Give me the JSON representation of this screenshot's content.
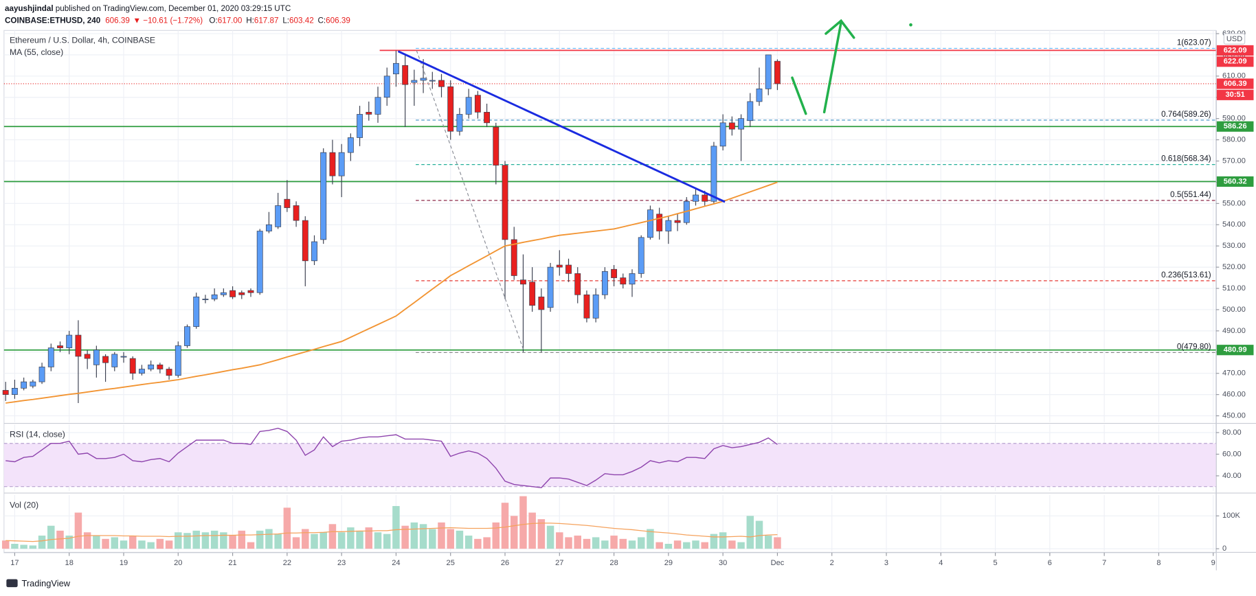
{
  "header": {
    "author": "aayushjindal",
    "published": " published on TradingView.com, December 01, 2020 03:29:15 UTC",
    "symbol": "COINBASE:ETHUSD, 240",
    "price": "606.39",
    "change": "▼ −10.61 (−1.72%)",
    "ohlc": [
      {
        "key": "O:",
        "text": "617.00"
      },
      {
        "key": "H:",
        "text": "617.87"
      },
      {
        "key": "L:",
        "text": "603.42"
      },
      {
        "key": "C:",
        "text": "606.39"
      }
    ]
  },
  "footer": {
    "brand": "TradingView"
  },
  "chart_data": [
    {
      "type": "candlestick",
      "title": "Ethereum / U.S. Dollar, 4h, COINBASE",
      "currency": "USD",
      "countdown": "30:51",
      "up_color": "#5b9cf6",
      "down_color": "#e8201f",
      "wick_color": "#3a3f4f",
      "open": [
        462,
        460,
        463,
        464,
        466,
        473,
        483,
        482,
        488,
        479,
        474,
        478,
        473,
        478,
        477,
        470,
        472,
        474,
        472,
        469,
        483,
        492,
        505,
        505,
        507,
        509,
        508,
        509,
        508,
        537,
        539,
        552,
        549,
        542,
        523,
        533,
        574,
        563,
        574,
        581,
        593,
        592,
        600,
        611,
        615,
        607,
        608,
        608,
        608,
        605,
        584,
        592,
        601,
        593,
        586,
        568,
        533,
        514,
        513,
        506,
        501,
        521,
        521,
        517,
        507,
        496,
        507,
        519,
        515,
        512,
        517,
        534,
        545,
        537,
        542,
        541,
        551,
        554,
        551,
        577,
        588,
        585,
        589,
        598,
        604,
        617
      ],
      "high": [
        466,
        467,
        468,
        467,
        475,
        484,
        485,
        490,
        495,
        481,
        483,
        479,
        480,
        480,
        478,
        474,
        476,
        475,
        473,
        485,
        493,
        508,
        507,
        510,
        510,
        511,
        509,
        510,
        538,
        546,
        555,
        561,
        551,
        544,
        535,
        576,
        580,
        578,
        583,
        596,
        598,
        605,
        614,
        622,
        620,
        613,
        618,
        612,
        611,
        608,
        595,
        604,
        603,
        597,
        588,
        570,
        539,
        526,
        520,
        510,
        522,
        528,
        524,
        520,
        509,
        510,
        520,
        521,
        517,
        519,
        535,
        549,
        548,
        544,
        545,
        553,
        557,
        556,
        579,
        592,
        591,
        592,
        602,
        614,
        620,
        617.87
      ],
      "low": [
        457,
        458,
        462,
        463,
        465,
        471,
        480,
        479,
        456,
        472,
        468,
        466,
        471,
        475,
        467,
        469,
        471,
        470,
        467,
        468,
        482,
        491,
        503,
        504,
        506,
        505,
        505,
        506,
        507,
        536,
        538,
        546,
        539,
        511,
        521,
        531,
        559,
        553,
        570,
        577,
        589,
        588,
        596,
        605,
        586,
        596,
        602,
        604,
        600,
        580,
        582,
        590,
        590,
        586,
        559,
        505,
        514,
        480,
        499,
        480,
        499,
        516,
        513,
        503,
        494,
        494,
        505,
        511,
        510,
        506,
        515,
        533,
        533,
        531,
        537,
        540,
        549,
        549,
        550,
        575,
        582,
        570,
        586,
        596,
        601,
        603.42
      ],
      "close": [
        460,
        463,
        466,
        466,
        473,
        482,
        482,
        488,
        478,
        477,
        481,
        475,
        479,
        478,
        470,
        472,
        474,
        472,
        469,
        483,
        492,
        506,
        505,
        507,
        508,
        506,
        507,
        508,
        537,
        540,
        549,
        548,
        542,
        523,
        532,
        574,
        563,
        574,
        581,
        592,
        592,
        600,
        610,
        616,
        606,
        608,
        609,
        608,
        605,
        584,
        592,
        600,
        593,
        588,
        568,
        533,
        516,
        512,
        502,
        500,
        520,
        520,
        517,
        507,
        496,
        507,
        518,
        515,
        512,
        517,
        534,
        547,
        537,
        542,
        541,
        551,
        554,
        551,
        577,
        588,
        585,
        590,
        598,
        604,
        620,
        606.39
      ],
      "ma": {
        "name": "MA (55, close)",
        "color": "#f29432",
        "values": [
          456,
          456.6,
          457.2,
          457.7,
          458.3,
          458.9,
          459.5,
          460.1,
          460.6,
          461.2,
          461.8,
          462.4,
          462.9,
          463.5,
          464.1,
          464.7,
          465.3,
          465.8,
          466.4,
          467,
          467.8,
          468.6,
          469.3,
          470.1,
          470.9,
          471.7,
          472.4,
          473.2,
          474,
          475.2,
          476.4,
          477.7,
          478.9,
          480.1,
          481.3,
          482.6,
          483.8,
          485,
          487,
          489,
          491,
          493,
          495,
          497,
          500.2,
          503.3,
          506.5,
          509.7,
          512.8,
          516,
          518.3,
          520.7,
          523,
          525.3,
          527.7,
          530,
          530.8,
          531.7,
          532.5,
          533.3,
          534.2,
          535,
          535.5,
          536,
          536.5,
          537,
          537.5,
          538,
          539,
          540,
          541,
          542,
          543,
          544,
          545.2,
          546.3,
          547.5,
          548.7,
          549.8,
          551,
          552.5,
          554,
          555.5,
          557,
          558.5,
          560
        ]
      },
      "levels": [
        {
          "value": 622.09,
          "color": "#f23645"
        },
        {
          "value": 586.26,
          "color": "#2e9d3f"
        },
        {
          "value": 560.32,
          "color": "#2e9d3f"
        },
        {
          "value": 480.99,
          "color": "#2e9d3f"
        }
      ],
      "axis_labels": [
        {
          "value": 622.09,
          "color": "#f23645"
        },
        {
          "value": 606.39,
          "color": "#f23645"
        }
      ],
      "fib": [
        {
          "value": 623.07,
          "label": "1(623.07)",
          "color": "#64b5f6"
        },
        {
          "value": 589.26,
          "label": "0.764(589.26)",
          "color": "#3d8fc6"
        },
        {
          "value": 568.34,
          "label": "0.618(568.34)",
          "color": "#26b09a"
        },
        {
          "value": 551.44,
          "label": "0.5(551.44)",
          "color": "#8e2a4a"
        },
        {
          "value": 513.61,
          "label": "0.236(513.61)",
          "color": "#e53935"
        },
        {
          "value": 479.8,
          "label": "0(479.80)",
          "color": "#888888"
        }
      ],
      "ylim": [
        447,
        631.5
      ],
      "yticks": [
        {
          "value": 450,
          "label": "450.00"
        },
        {
          "value": 460,
          "label": "460.00"
        },
        {
          "value": 470,
          "label": "470.00"
        },
        {
          "value": 480,
          "label": "480.00"
        },
        {
          "value": 490,
          "label": "490.00"
        },
        {
          "value": 500,
          "label": "500.00"
        },
        {
          "value": 510,
          "label": "510.00"
        },
        {
          "value": 520,
          "label": "520.00"
        },
        {
          "value": 530,
          "label": "530.00"
        },
        {
          "value": 540,
          "label": "540.00"
        },
        {
          "value": 550,
          "label": "550.00"
        },
        {
          "value": 560,
          "label": "560.00"
        },
        {
          "value": 570,
          "label": "570.00"
        },
        {
          "value": 580,
          "label": "580.00"
        },
        {
          "value": 590,
          "label": "590.00"
        },
        {
          "value": 600,
          "label": "600.00"
        },
        {
          "value": 610,
          "label": "610.00"
        },
        {
          "value": 620,
          "label": "620.00"
        },
        {
          "value": 630,
          "label": "630.00"
        }
      ],
      "xlim": [
        -0.18,
        133.3
      ],
      "xticks": [
        {
          "value": 1,
          "label": "17"
        },
        {
          "value": 7,
          "label": "18"
        },
        {
          "value": 13,
          "label": "19"
        },
        {
          "value": 19,
          "label": "20"
        },
        {
          "value": 25,
          "label": "21"
        },
        {
          "value": 31,
          "label": "22"
        },
        {
          "value": 37,
          "label": "23"
        },
        {
          "value": 43,
          "label": "24"
        },
        {
          "value": 49,
          "label": "25"
        },
        {
          "value": 55,
          "label": "26"
        },
        {
          "value": 61,
          "label": "27"
        },
        {
          "value": 67,
          "label": "28"
        },
        {
          "value": 73,
          "label": "29"
        },
        {
          "value": 79,
          "label": "30"
        },
        {
          "value": 85,
          "label": "Dec"
        },
        {
          "value": 91,
          "label": "2"
        },
        {
          "value": 97,
          "label": "3"
        },
        {
          "value": 103,
          "label": "4"
        },
        {
          "value": 109,
          "label": "5"
        },
        {
          "value": 115,
          "label": "6"
        },
        {
          "value": 121,
          "label": "7"
        },
        {
          "value": 127,
          "label": "8"
        },
        {
          "value": 133,
          "label": "9"
        }
      ]
    },
    {
      "type": "line",
      "title": "RSI (14, close)",
      "color": "#8e44ad",
      "band": [
        30,
        70
      ],
      "band_color": "#f3e3fa",
      "values": [
        54,
        53,
        57,
        58,
        64,
        70,
        70,
        72,
        60,
        61,
        56,
        56,
        57,
        60,
        54,
        53,
        55,
        56,
        53,
        61,
        67,
        73,
        73,
        73,
        73,
        70,
        70,
        69,
        81,
        82,
        84,
        81,
        73,
        59,
        64,
        76,
        67,
        72,
        73,
        75,
        76,
        76,
        77,
        78,
        74,
        74,
        74,
        73,
        72,
        58,
        61,
        63,
        61,
        56,
        47,
        35,
        32,
        31,
        30,
        29,
        38,
        38,
        37,
        34,
        31,
        36,
        42,
        41,
        41,
        44,
        48,
        54,
        52,
        54,
        53,
        57,
        57,
        56,
        65,
        68,
        66,
        67,
        69,
        71,
        75,
        69
      ],
      "ylim": [
        25.9,
        87.4
      ],
      "yticks": [
        {
          "value": 40,
          "label": "40.00"
        },
        {
          "value": 60,
          "label": "60.00"
        },
        {
          "value": 80,
          "label": "80.00"
        }
      ]
    },
    {
      "type": "bar",
      "title": "Vol (20)",
      "up_color": "#a6dccb",
      "down_color": "#f6a9a9",
      "values": [
        25000,
        15000,
        12000,
        10000,
        40000,
        70000,
        55000,
        40000,
        110000,
        50000,
        40000,
        30000,
        35000,
        25000,
        40000,
        25000,
        20000,
        30000,
        25000,
        50000,
        48000,
        55000,
        50000,
        55000,
        50000,
        40000,
        55000,
        20000,
        55000,
        60000,
        45000,
        125000,
        35000,
        60000,
        45000,
        50000,
        75000,
        50000,
        65000,
        55000,
        65000,
        50000,
        45000,
        130000,
        70000,
        80000,
        75000,
        60000,
        80000,
        60000,
        55000,
        40000,
        30000,
        35000,
        80000,
        140000,
        100000,
        160000,
        110000,
        90000,
        70000,
        50000,
        35000,
        40000,
        30000,
        35000,
        25000,
        40000,
        30000,
        25000,
        35000,
        60000,
        20000,
        15000,
        25000,
        20000,
        25000,
        20000,
        45000,
        50000,
        25000,
        20000,
        100000,
        85000,
        40000,
        35000
      ],
      "ma": {
        "color": "#f5a25d",
        "values": [
          25000,
          24000,
          23000,
          22000,
          24000,
          28000,
          30000,
          32000,
          38000,
          40000,
          40000,
          40000,
          40000,
          39000,
          39000,
          38000,
          38000,
          38000,
          37000,
          38000,
          38000,
          39000,
          40000,
          40000,
          41000,
          41000,
          42000,
          42000,
          43000,
          44000,
          45000,
          48000,
          48000,
          49000,
          49000,
          50000,
          52000,
          52000,
          53000,
          54000,
          54000,
          55000,
          55000,
          58000,
          59000,
          60000,
          61000,
          62000,
          63000,
          64000,
          63000,
          62000,
          62000,
          62000,
          63000,
          66000,
          70000,
          74000,
          77000,
          78000,
          78000,
          77000,
          75000,
          73000,
          71000,
          68000,
          65000,
          62000,
          60000,
          58000,
          55000,
          52000,
          50000,
          48000,
          45000,
          42000,
          40000,
          38000,
          36000,
          36000,
          37000,
          38000,
          36000,
          40000,
          42000,
          43000
        ]
      },
      "ylim": [
        -7300,
        163400
      ],
      "yticks": [
        0,
        {
          "value": 100000,
          "label": "100K"
        }
      ]
    }
  ]
}
